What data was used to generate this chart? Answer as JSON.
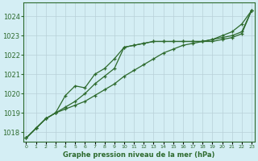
{
  "x": [
    0,
    1,
    2,
    3,
    4,
    5,
    6,
    7,
    8,
    9,
    10,
    11,
    12,
    13,
    14,
    15,
    16,
    17,
    18,
    19,
    20,
    21,
    22,
    23
  ],
  "line1": [
    1017.7,
    1018.2,
    1018.7,
    1019.0,
    1019.3,
    1019.6,
    1020.0,
    1020.5,
    1020.9,
    1021.3,
    1022.4,
    1022.5,
    1022.6,
    1022.7,
    1022.7,
    1022.7,
    1022.7,
    1022.7,
    1022.7,
    1022.7,
    1022.8,
    1022.9,
    1023.1,
    1024.3
  ],
  "line2": [
    1017.7,
    1018.2,
    1018.7,
    1019.0,
    1019.9,
    1020.4,
    1020.3,
    1021.0,
    1021.3,
    1021.8,
    1022.4,
    1022.5,
    1022.6,
    1022.7,
    1022.7,
    1022.7,
    1022.7,
    1022.7,
    1022.7,
    1022.8,
    1022.9,
    1023.0,
    1023.2,
    1024.3
  ],
  "line3": [
    1017.7,
    1018.2,
    1018.7,
    1019.0,
    1019.2,
    1019.4,
    1019.6,
    1019.9,
    1020.2,
    1020.5,
    1020.9,
    1021.2,
    1021.5,
    1021.8,
    1022.1,
    1022.3,
    1022.5,
    1022.6,
    1022.7,
    1022.8,
    1023.0,
    1023.2,
    1023.6,
    1024.3
  ],
  "line_color": "#2d6a2d",
  "bg_color": "#d4eef4",
  "grid_color": "#b8d0d8",
  "ylabel_ticks": [
    1018,
    1019,
    1020,
    1021,
    1022,
    1023,
    1024
  ],
  "ylim": [
    1017.5,
    1024.7
  ],
  "xlim": [
    -0.3,
    23.3
  ],
  "xlabel": "Graphe pression niveau de la mer (hPa)",
  "ylabel_fontsize": 6,
  "xlabel_fontsize": 6,
  "xtick_fontsize": 4.5,
  "ytick_fontsize": 6,
  "marker": "+",
  "markersize": 3.5,
  "linewidth": 0.9
}
